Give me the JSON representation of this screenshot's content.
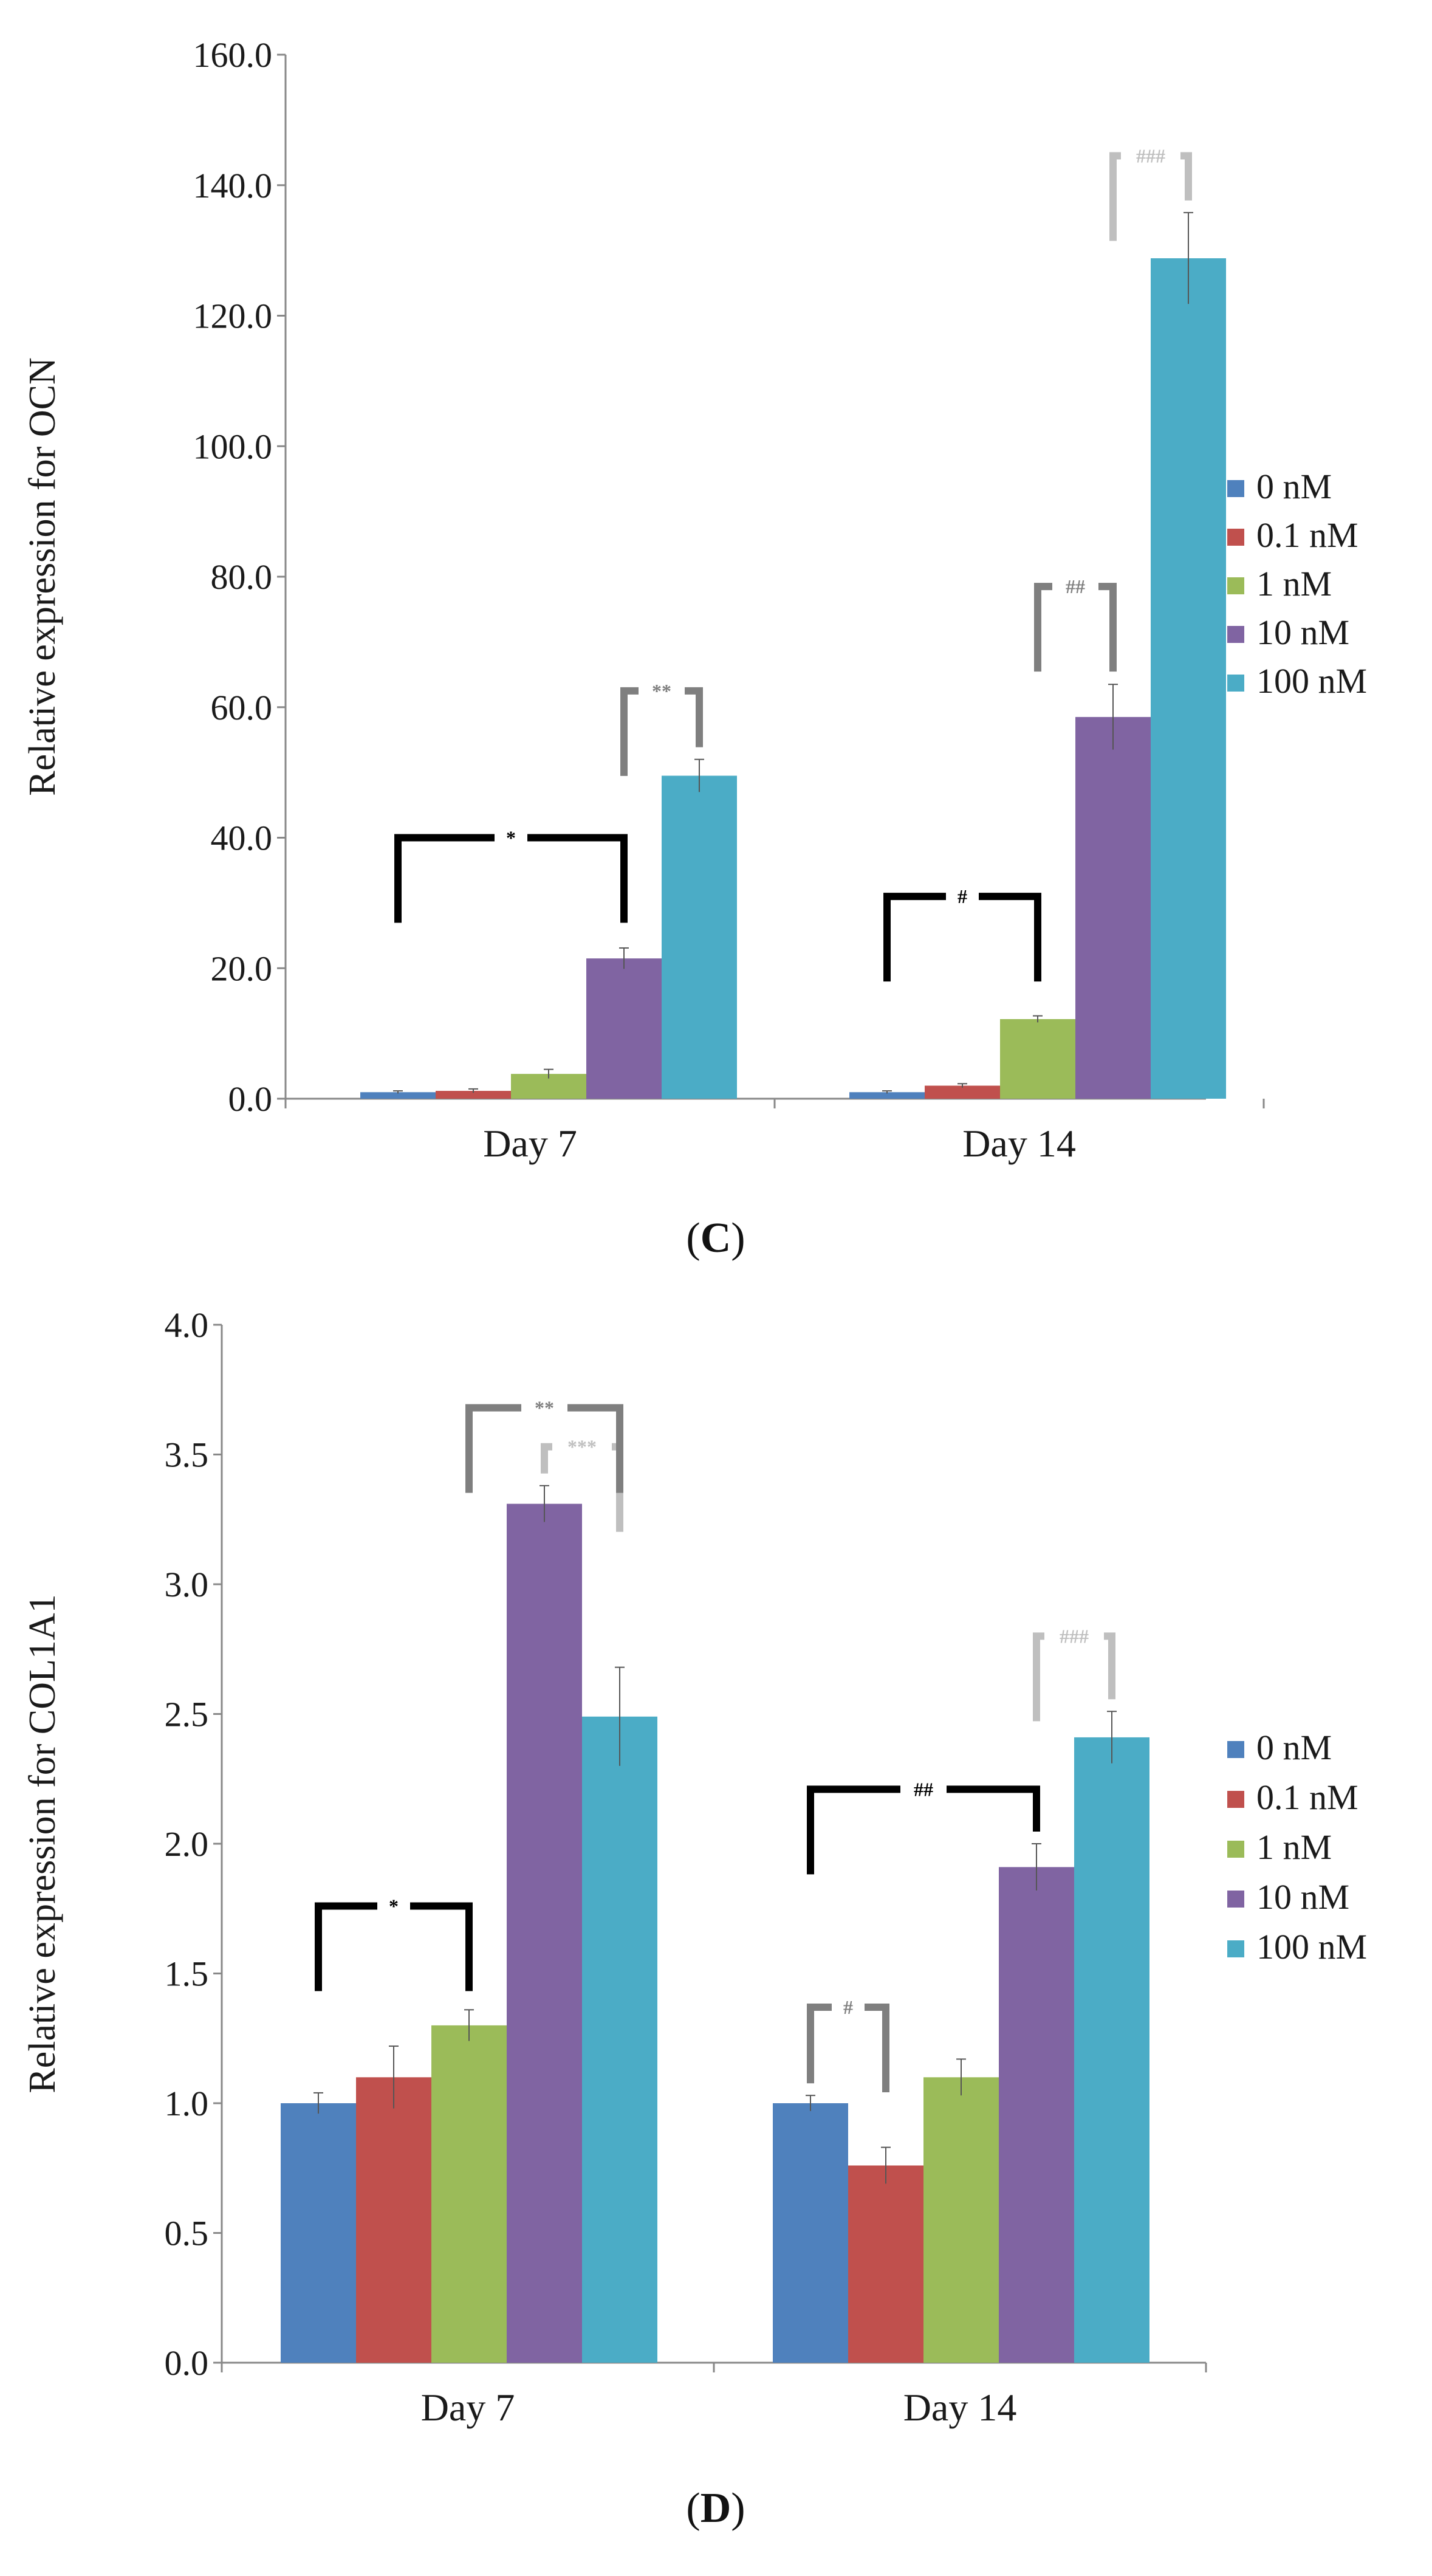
{
  "colors": {
    "0 nM": "#4F81BD",
    "0.1 nM": "#C0504D",
    "1 nM": "#9BBB59",
    "10 nM": "#8064A2",
    "100 nM": "#4BACC6",
    "sig_black": "#000000",
    "sig_dark": "#7f7f7f",
    "sig_light": "#bfbfbf"
  },
  "chart_data": [
    {
      "type": "bar",
      "panel": "C",
      "panel_label": "C",
      "title": "",
      "xlabel": "",
      "ylabel": "Relative expression for OCN",
      "ylim": [
        0,
        160
      ],
      "yticks": [
        "0.0",
        "20.0",
        "40.0",
        "60.0",
        "80.0",
        "100.0",
        "120.0",
        "140.0",
        "160.0"
      ],
      "categories": [
        "Day 7",
        "Day 14"
      ],
      "legend": [
        "0 nM",
        "0.1 nM",
        "1 nM",
        "10 nM",
        "100 nM"
      ],
      "legend_position": "right",
      "series": [
        {
          "name": "0 nM",
          "values": [
            1.0,
            1.0
          ],
          "errors": [
            0.2,
            0.2
          ]
        },
        {
          "name": "0.1 nM",
          "values": [
            1.2,
            2.0
          ],
          "errors": [
            0.3,
            0.3
          ]
        },
        {
          "name": "1 nM",
          "values": [
            3.8,
            12.2
          ],
          "errors": [
            0.7,
            0.5
          ]
        },
        {
          "name": "10 nM",
          "values": [
            21.5,
            58.5
          ],
          "errors": [
            1.6,
            5.0
          ]
        },
        {
          "name": "100 nM",
          "values": [
            49.5,
            128.8
          ],
          "errors": [
            2.5,
            7.0
          ]
        }
      ],
      "significance": [
        {
          "category": "Day 7",
          "from": "0 nM",
          "to": "10 nM",
          "label": "*",
          "style": "sig_black",
          "level": 40.0
        },
        {
          "category": "Day 7",
          "from": "10 nM",
          "to": "100 nM",
          "label": "**",
          "style": "sig_dark",
          "level": 62.5
        },
        {
          "category": "Day 14",
          "from": "0 nM",
          "to": "1 nM",
          "label": "#",
          "style": "sig_black",
          "level": 31.0
        },
        {
          "category": "Day 14",
          "from": "1 nM",
          "to": "10 nM",
          "label": "##",
          "style": "sig_dark",
          "level": 78.5
        },
        {
          "category": "Day 14",
          "from": "10 nM",
          "to": "100 nM",
          "label": "###",
          "style": "sig_light",
          "level": 144.5
        }
      ]
    },
    {
      "type": "bar",
      "panel": "D",
      "panel_label": "D",
      "title": "",
      "xlabel": "",
      "ylabel": "Relative expression for COL1A1",
      "ylim": [
        0,
        4
      ],
      "yticks": [
        "0.0",
        "0.5",
        "1.0",
        "1.5",
        "2.0",
        "2.5",
        "3.0",
        "3.5",
        "4.0"
      ],
      "categories": [
        "Day 7",
        "Day 14"
      ],
      "legend": [
        "0 nM",
        "0.1 nM",
        "1 nM",
        "10 nM",
        "100 nM"
      ],
      "legend_position": "right",
      "series": [
        {
          "name": "0 nM",
          "values": [
            1.0,
            1.0
          ],
          "errors": [
            0.04,
            0.03
          ]
        },
        {
          "name": "0.1 nM",
          "values": [
            1.1,
            0.76
          ],
          "errors": [
            0.12,
            0.07
          ]
        },
        {
          "name": "1 nM",
          "values": [
            1.3,
            1.1
          ],
          "errors": [
            0.06,
            0.07
          ]
        },
        {
          "name": "10 nM",
          "values": [
            3.31,
            1.91
          ],
          "errors": [
            0.07,
            0.09
          ]
        },
        {
          "name": "100 nM",
          "values": [
            2.49,
            2.41
          ],
          "errors": [
            0.19,
            0.1
          ]
        }
      ],
      "significance": [
        {
          "category": "Day 7",
          "from": "0 nM",
          "to": "1 nM",
          "label": "*",
          "style": "sig_black",
          "level": 1.76
        },
        {
          "category": "Day 7",
          "from": "10 nM",
          "to": "100 nM",
          "label": "***",
          "style": "sig_light",
          "level": 3.53
        },
        {
          "category": "Day 7",
          "from": "1 nM",
          "to": "100 nM",
          "label": "**",
          "style": "sig_dark",
          "level": 3.68
        },
        {
          "category": "Day 14",
          "from": "0 nM",
          "to": "10 nM",
          "label": "##",
          "style": "sig_black",
          "level": 2.21
        },
        {
          "category": "Day 14",
          "from": "0 nM",
          "to": "0.1 nM",
          "label": "#",
          "style": "sig_dark",
          "level": 1.37
        },
        {
          "category": "Day 14",
          "from": "10 nM",
          "to": "100 nM",
          "label": "###",
          "style": "sig_light",
          "level": 2.8
        }
      ]
    }
  ]
}
